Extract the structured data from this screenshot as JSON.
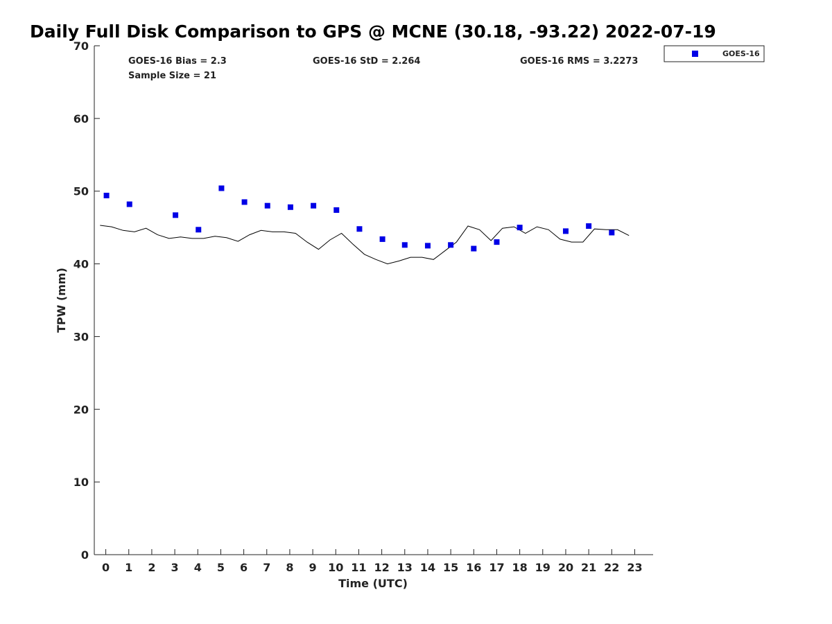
{
  "chart_data": {
    "type": "scatter",
    "title": "Daily Full Disk Comparison to GPS @ MCNE (30.18, -93.22) 2022-07-19",
    "xlabel": "Time (UTC)",
    "ylabel": "TPW (mm)",
    "xlim": [
      -0.5,
      23.8
    ],
    "ylim": [
      0,
      70
    ],
    "xticks": [
      "0",
      "1",
      "2",
      "3",
      "4",
      "5",
      "6",
      "7",
      "8",
      "9",
      "10",
      "11",
      "12",
      "13",
      "14",
      "15",
      "16",
      "17",
      "18",
      "19",
      "20",
      "21",
      "22",
      "23"
    ],
    "yticks": [
      "0",
      "10",
      "20",
      "30",
      "40",
      "50",
      "60",
      "70"
    ],
    "grid": false,
    "legend_position": "top-right, outside plot",
    "stats": {
      "bias": "GOES-16 Bias = 2.3",
      "sample": "Sample Size = 21",
      "std": "GOES-16 StD = 2.264",
      "rms": "GOES-16 RMS = 3.2273"
    },
    "series": [
      {
        "name": "GOES-16",
        "kind": "scatter",
        "marker": "square",
        "color": "#0000e6",
        "x": [
          0.03,
          1.03,
          3.03,
          4.03,
          5.03,
          6.03,
          7.03,
          8.03,
          9.03,
          10.03,
          11.03,
          12.03,
          13.0,
          14.0,
          15.0,
          16.0,
          17.0,
          18.0,
          20.0,
          21.0,
          22.0
        ],
        "y": [
          49.4,
          48.2,
          46.7,
          44.7,
          50.4,
          48.5,
          48.0,
          47.8,
          48.0,
          47.4,
          44.8,
          43.4,
          42.6,
          42.5,
          42.6,
          42.1,
          43.0,
          45.0,
          44.5,
          45.2,
          44.3
        ]
      },
      {
        "kind": "line",
        "color": "#000000",
        "x": [
          -0.25,
          0.25,
          0.75,
          1.25,
          1.75,
          2.25,
          2.75,
          3.25,
          3.75,
          4.25,
          4.75,
          5.25,
          5.75,
          6.25,
          6.75,
          7.25,
          7.75,
          8.25,
          8.75,
          9.25,
          9.75,
          10.25,
          10.75,
          11.25,
          11.75,
          12.25,
          12.75,
          13.25,
          13.75,
          14.25,
          14.75,
          15.25,
          15.75,
          16.25,
          16.75,
          17.25,
          17.75,
          18.25,
          18.75,
          19.25,
          19.75,
          20.25,
          20.75,
          21.25,
          21.75,
          22.25,
          22.75
        ],
        "y": [
          45.3,
          45.1,
          44.6,
          44.4,
          44.9,
          44.0,
          43.5,
          43.7,
          43.5,
          43.5,
          43.8,
          43.6,
          43.1,
          44.0,
          44.6,
          44.4,
          44.4,
          44.2,
          43.0,
          42.0,
          43.3,
          44.2,
          42.7,
          41.3,
          40.6,
          40.0,
          40.4,
          40.9,
          40.9,
          40.6,
          41.8,
          43.0,
          45.2,
          44.7,
          43.2,
          44.9,
          45.1,
          44.2,
          45.1,
          44.7,
          43.4,
          43.0,
          43.0,
          44.8,
          44.7,
          44.7,
          43.9
        ]
      }
    ]
  }
}
